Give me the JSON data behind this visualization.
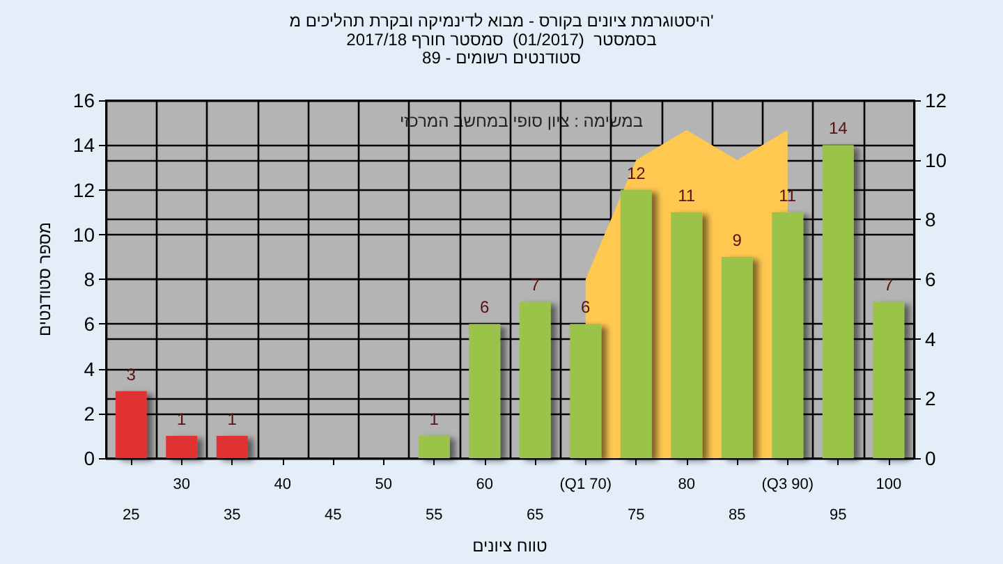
{
  "chart_data": {
    "type": "bar",
    "title": "היסטוגרמת ציונים בקורס - מבוא לדינמיקה ובקרת תהליכים מ'",
    "subtitle": "בסמסטר  (01/2017)  סמסטר חורף 2017/18\nסטודנטים רשומים - 89",
    "xlabel": "טווח ציונים",
    "ylabel": "מספר סטודנטים",
    "annotations": [
      "במשימה : ציון סופי במחשב המרכזי"
    ],
    "categories": [
      "25",
      "30",
      "35",
      "40",
      "45",
      "50",
      "55",
      "60",
      "65",
      "(Q1 70)",
      "75",
      "80",
      "85",
      "(Q3 90)",
      "95",
      "100"
    ],
    "series": [
      {
        "type": "area",
        "axis": "y2",
        "color": "#ffc850",
        "values": [
          null,
          null,
          null,
          null,
          null,
          null,
          null,
          null,
          null,
          6,
          10,
          11,
          10,
          11,
          null,
          null
        ]
      },
      {
        "colors": [
          "#e03030",
          "#e03030",
          "#e03030",
          "#9bc34a",
          "#9bc34a",
          "#9bc34a",
          "#9bc34a",
          "#9bc34a",
          "#9bc34a",
          "#9bc34a",
          "#9bc34a",
          "#9bc34a",
          "#9bc34a",
          "#9bc34a",
          "#9bc34a",
          "#9bc34a"
        ],
        "values": [
          3,
          1,
          1,
          0,
          0,
          0,
          1,
          6,
          7,
          6,
          12,
          11,
          9,
          11,
          14,
          7
        ],
        "value_labels": [
          "3",
          "1",
          "1",
          null,
          null,
          null,
          "1",
          "6",
          "7",
          "6",
          "12",
          "11",
          "9",
          "11",
          "14",
          "7"
        ]
      }
    ],
    "ylim": [
      0,
      16
    ],
    "yticks": [
      0,
      2,
      4,
      6,
      8,
      10,
      12,
      14,
      16
    ],
    "y2lim": [
      0,
      12
    ],
    "y2ticks": [
      0,
      2,
      4,
      6,
      8,
      10,
      12
    ],
    "grid": true
  }
}
